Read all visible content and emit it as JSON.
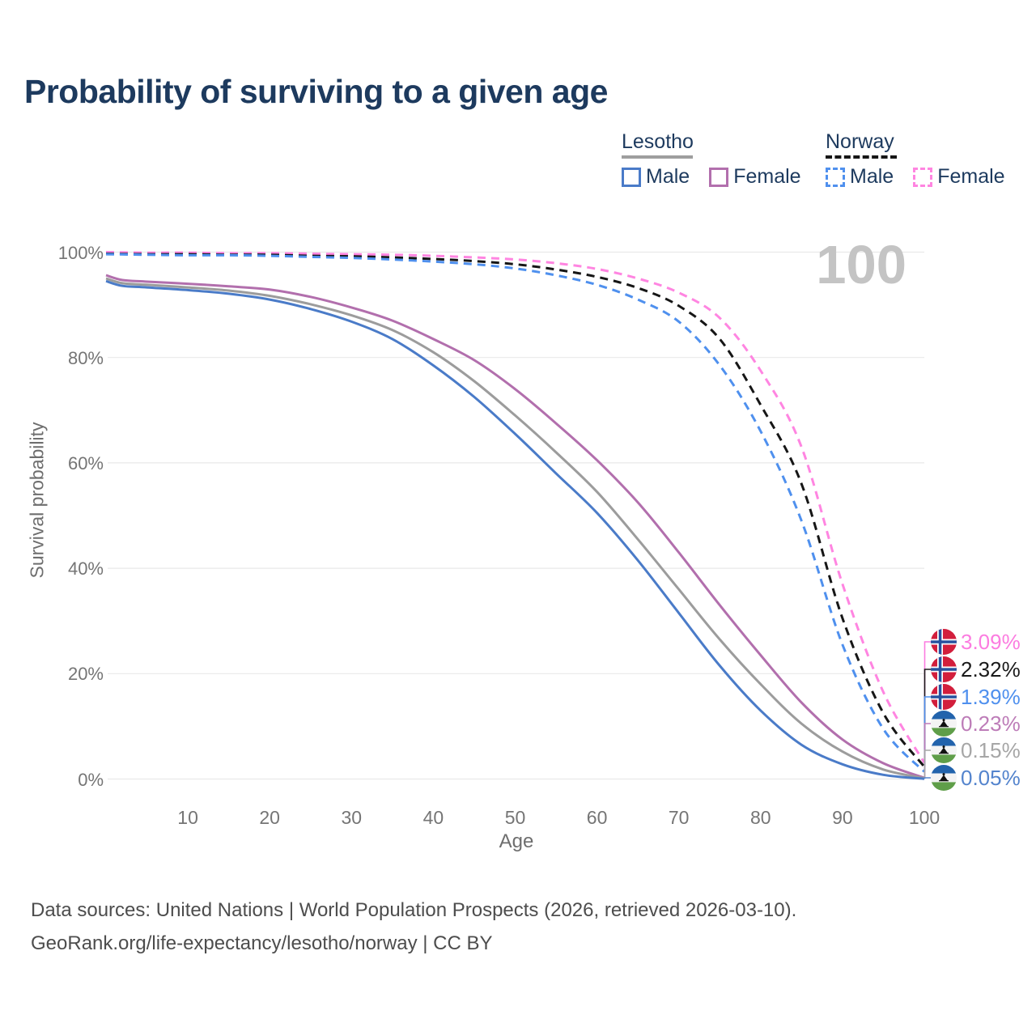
{
  "title": "Probability of surviving to a given age",
  "legend": {
    "groups": [
      {
        "country": "Lesotho",
        "line_style": "solid",
        "underline_color": "#9e9e9e",
        "items": [
          {
            "label": "Male",
            "color": "#4a7bc8",
            "dashed": false
          },
          {
            "label": "Female",
            "color": "#b26fad",
            "dashed": false
          }
        ]
      },
      {
        "country": "Norway",
        "line_style": "dashed",
        "underline_color": "#161616",
        "items": [
          {
            "label": "Male",
            "color": "#4f90ee",
            "dashed": true
          },
          {
            "label": "Female",
            "color": "#ff85e1",
            "dashed": true
          }
        ]
      }
    ]
  },
  "watermark_age": "100",
  "footer": {
    "line1": "Data sources: United Nations | World Population Prospects (2026, retrieved 2026-03-10).",
    "line2": "GeoRank.org/life-expectancy/lesotho/norway | CC BY"
  },
  "colors": {
    "title_text": "#1d3a5e",
    "axis_text": "#757575",
    "gridline": "#e9e9e9",
    "watermark": "#c4c4c4",
    "footer_text": "#4d4d4d"
  },
  "chart_data": {
    "type": "line",
    "title": "Probability of surviving to a given age",
    "xlabel": "Age",
    "ylabel": "Survival probability",
    "xlim": [
      0,
      100
    ],
    "ylim": [
      0,
      100
    ],
    "grid": "horizontal-only",
    "legend_position": "top-right",
    "x_ticks": [
      10,
      20,
      30,
      40,
      50,
      60,
      70,
      80,
      90,
      100
    ],
    "y_ticks": [
      0,
      20,
      40,
      60,
      80,
      100
    ],
    "y_tick_suffix": "%",
    "series": [
      {
        "id": "norway-female",
        "name": "Norway Female",
        "color": "#ff85e1",
        "dashed": true,
        "points": [
          [
            0,
            100
          ],
          [
            5,
            99.9
          ],
          [
            10,
            99.9
          ],
          [
            15,
            99.8
          ],
          [
            20,
            99.8
          ],
          [
            25,
            99.7
          ],
          [
            30,
            99.6
          ],
          [
            35,
            99.5
          ],
          [
            40,
            99.3
          ],
          [
            45,
            99.0
          ],
          [
            50,
            98.6
          ],
          [
            55,
            97.9
          ],
          [
            60,
            96.8
          ],
          [
            65,
            95.0
          ],
          [
            70,
            92.3
          ],
          [
            75,
            87.5
          ],
          [
            80,
            77.5
          ],
          [
            85,
            63.0
          ],
          [
            90,
            37.0
          ],
          [
            95,
            16.5
          ],
          [
            100,
            3.09
          ]
        ]
      },
      {
        "id": "norway-both",
        "name": "Norway Both sexes",
        "color": "#161616",
        "dashed": true,
        "points": [
          [
            0,
            99.7
          ],
          [
            5,
            99.6
          ],
          [
            10,
            99.6
          ],
          [
            15,
            99.5
          ],
          [
            20,
            99.5
          ],
          [
            25,
            99.3
          ],
          [
            30,
            99.2
          ],
          [
            35,
            99.0
          ],
          [
            40,
            98.7
          ],
          [
            45,
            98.3
          ],
          [
            50,
            97.7
          ],
          [
            55,
            96.7
          ],
          [
            60,
            95.3
          ],
          [
            65,
            93.2
          ],
          [
            70,
            89.8
          ],
          [
            75,
            83.5
          ],
          [
            80,
            71.0
          ],
          [
            85,
            56.0
          ],
          [
            90,
            30.5
          ],
          [
            95,
            12.5
          ],
          [
            100,
            2.32
          ]
        ]
      },
      {
        "id": "norway-male",
        "name": "Norway Male",
        "color": "#4f90ee",
        "dashed": true,
        "points": [
          [
            0,
            99.6
          ],
          [
            5,
            99.5
          ],
          [
            10,
            99.4
          ],
          [
            15,
            99.4
          ],
          [
            20,
            99.3
          ],
          [
            25,
            99.1
          ],
          [
            30,
            98.9
          ],
          [
            35,
            98.6
          ],
          [
            40,
            98.2
          ],
          [
            45,
            97.7
          ],
          [
            50,
            96.9
          ],
          [
            55,
            95.6
          ],
          [
            60,
            93.8
          ],
          [
            65,
            91.0
          ],
          [
            70,
            86.8
          ],
          [
            75,
            78.5
          ],
          [
            80,
            66.0
          ],
          [
            85,
            49.0
          ],
          [
            90,
            25.5
          ],
          [
            95,
            9.5
          ],
          [
            100,
            1.39
          ]
        ]
      },
      {
        "id": "lesotho-female",
        "name": "Lesotho Female",
        "color": "#b26fad",
        "dashed": false,
        "points": [
          [
            0,
            95.6
          ],
          [
            2,
            94.7
          ],
          [
            5,
            94.4
          ],
          [
            10,
            94.0
          ],
          [
            15,
            93.5
          ],
          [
            20,
            92.9
          ],
          [
            25,
            91.5
          ],
          [
            30,
            89.5
          ],
          [
            35,
            87.0
          ],
          [
            40,
            83.5
          ],
          [
            45,
            79.5
          ],
          [
            50,
            74.0
          ],
          [
            55,
            67.5
          ],
          [
            60,
            60.5
          ],
          [
            65,
            52.5
          ],
          [
            70,
            43.0
          ],
          [
            75,
            33.0
          ],
          [
            80,
            23.5
          ],
          [
            85,
            14.5
          ],
          [
            90,
            7.5
          ],
          [
            95,
            3.0
          ],
          [
            100,
            0.23
          ]
        ]
      },
      {
        "id": "lesotho-both",
        "name": "Lesotho Both sexes",
        "color": "#9c9c9c",
        "dashed": false,
        "points": [
          [
            0,
            95.0
          ],
          [
            2,
            94.1
          ],
          [
            5,
            93.8
          ],
          [
            10,
            93.3
          ],
          [
            15,
            92.7
          ],
          [
            20,
            91.7
          ],
          [
            25,
            90.1
          ],
          [
            30,
            88.0
          ],
          [
            35,
            85.2
          ],
          [
            40,
            81.0
          ],
          [
            45,
            75.5
          ],
          [
            50,
            69.0
          ],
          [
            55,
            62.0
          ],
          [
            60,
            54.5
          ],
          [
            65,
            45.5
          ],
          [
            70,
            36.0
          ],
          [
            75,
            26.5
          ],
          [
            80,
            18.0
          ],
          [
            85,
            10.5
          ],
          [
            90,
            5.2
          ],
          [
            95,
            1.8
          ],
          [
            100,
            0.15
          ]
        ]
      },
      {
        "id": "lesotho-male",
        "name": "Lesotho Male",
        "color": "#4a7bc8",
        "dashed": false,
        "points": [
          [
            0,
            94.5
          ],
          [
            2,
            93.6
          ],
          [
            5,
            93.3
          ],
          [
            10,
            92.8
          ],
          [
            15,
            92.1
          ],
          [
            20,
            91.0
          ],
          [
            25,
            89.2
          ],
          [
            30,
            86.8
          ],
          [
            35,
            83.5
          ],
          [
            40,
            78.5
          ],
          [
            45,
            72.5
          ],
          [
            50,
            65.5
          ],
          [
            55,
            58.0
          ],
          [
            60,
            50.5
          ],
          [
            65,
            41.5
          ],
          [
            70,
            31.5
          ],
          [
            75,
            21.5
          ],
          [
            80,
            13.0
          ],
          [
            85,
            6.5
          ],
          [
            90,
            2.8
          ],
          [
            95,
            0.8
          ],
          [
            100,
            0.05
          ]
        ]
      }
    ],
    "end_labels": [
      {
        "flag": "norway",
        "text": "3.09%",
        "value": 3.09,
        "color": "#fc7ce0"
      },
      {
        "flag": "norway",
        "text": "2.32%",
        "value": 2.32,
        "color": "#1a1a1a"
      },
      {
        "flag": "norway",
        "text": "1.39%",
        "value": 1.39,
        "color": "#4f90ee"
      },
      {
        "flag": "lesotho",
        "text": "0.23%",
        "value": 0.23,
        "color": "#bd7cb8"
      },
      {
        "flag": "lesotho",
        "text": "0.15%",
        "value": 0.15,
        "color": "#a6a6a6"
      },
      {
        "flag": "lesotho",
        "text": "0.05%",
        "value": 0.05,
        "color": "#5484cd"
      }
    ]
  }
}
